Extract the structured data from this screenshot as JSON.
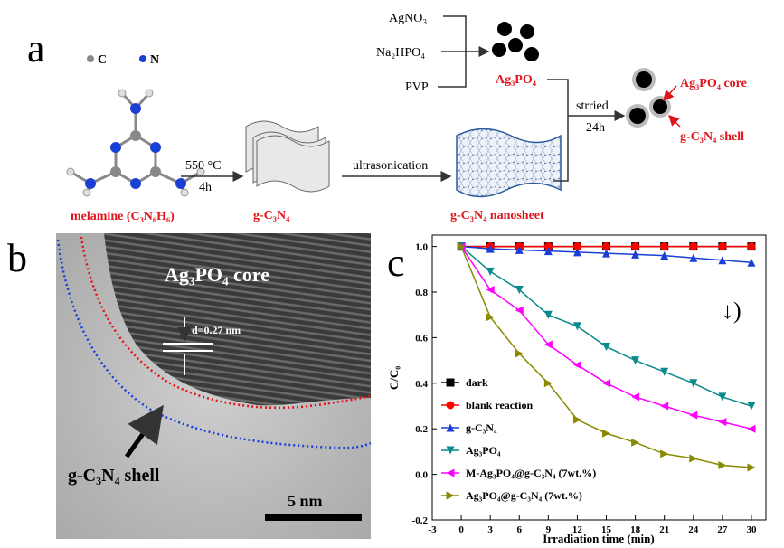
{
  "panel_a": {
    "letter": "a",
    "atom_c": "C",
    "atom_n": "N",
    "melamine": "melamine (C₃N₆H₆)",
    "temp": "550 °C",
    "time1": "4h",
    "gcn": "g-C₃N₄",
    "ultra": "ultrasonication",
    "nanosheet": "g-C₃N₄ nanosheet",
    "agno3": "AgNO₃",
    "na2hpo4": "Na₂HPO₄",
    "pvp": "PVP",
    "ag3po4": "Ag₃PO₄",
    "stirred": "strried",
    "time2": "24h",
    "core": "Ag₃PO₄ core",
    "shell": "g-C₃N₄ shell"
  },
  "panel_b": {
    "letter": "b",
    "core": "Ag₃PO₄ core",
    "spacing": "d=0.27 nm",
    "shell": "g-C₃N₄ shell",
    "scale": "5 nm"
  },
  "chart_data": {
    "type": "line",
    "letter": "c",
    "annotation": "↓)",
    "x_label": "Irradiation time (min)",
    "y_label": "C/C₀",
    "x": [
      0,
      3,
      6,
      9,
      12,
      15,
      18,
      21,
      24,
      27,
      30
    ],
    "xlim": [
      -3,
      31.5
    ],
    "xticks": [
      -3,
      0,
      3,
      6,
      9,
      12,
      15,
      18,
      21,
      24,
      27,
      30
    ],
    "ylim": [
      -0.2,
      1.05
    ],
    "yticks": [
      {
        "value": 1,
        "label": "1.0"
      },
      0.8,
      0.6,
      0.4,
      0.2,
      {
        "value": 0,
        "label": "0.0"
      },
      -0.2
    ],
    "series": [
      {
        "name": "dark",
        "color": "#000000",
        "marker": "square",
        "values": [
          1,
          1,
          1,
          1,
          1,
          1,
          1,
          1,
          1,
          1,
          1
        ]
      },
      {
        "name": "blank reaction",
        "color": "#ff0000",
        "marker": "circle",
        "values": [
          1,
          1,
          1,
          1,
          1,
          1,
          1,
          1,
          1,
          1,
          1
        ]
      },
      {
        "name": "g-C₃N₄",
        "color": "#1a3fd6",
        "marker": "up",
        "values": [
          1,
          0.99,
          0.985,
          0.98,
          0.975,
          0.97,
          0.965,
          0.96,
          0.95,
          0.94,
          0.93
        ]
      },
      {
        "name": "Ag₃PO₄",
        "color": "#0a8a8a",
        "marker": "down",
        "values": [
          1,
          0.89,
          0.81,
          0.7,
          0.65,
          0.56,
          0.5,
          0.45,
          0.4,
          0.34,
          0.3
        ]
      },
      {
        "name": "M-Ag₃PO₄@g-C₃N₄ (7wt.%)",
        "color": "#ff00ff",
        "marker": "left",
        "values": [
          1,
          0.81,
          0.72,
          0.57,
          0.48,
          0.4,
          0.34,
          0.3,
          0.26,
          0.23,
          0.2
        ]
      },
      {
        "name": "Ag₃PO₄@g-C₃N₄ (7wt.%)",
        "color": "#8a8a00",
        "marker": "right",
        "values": [
          1,
          0.69,
          0.53,
          0.4,
          0.24,
          0.18,
          0.14,
          0.09,
          0.07,
          0.04,
          0.03
        ]
      }
    ]
  }
}
